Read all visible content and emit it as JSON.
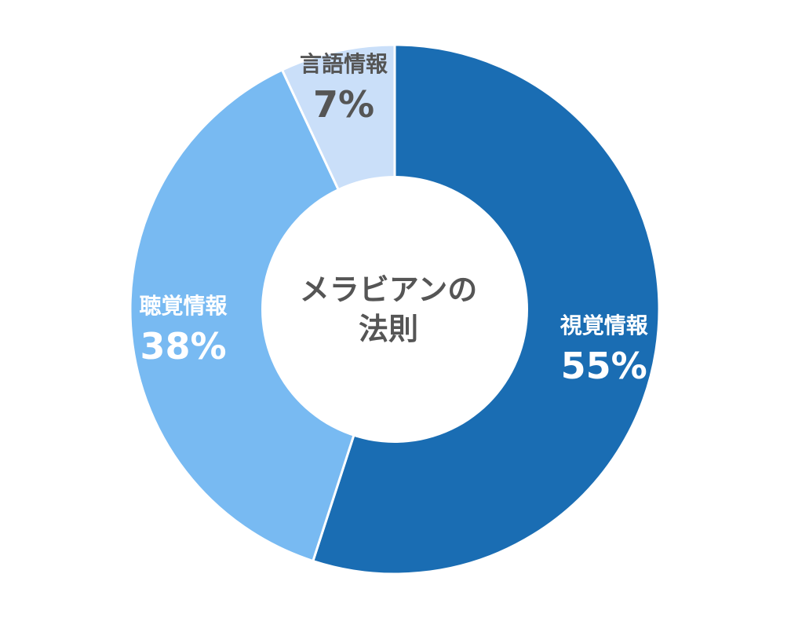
{
  "chart_data": {
    "type": "pie",
    "title_lines": [
      "メラビアンの",
      "法則"
    ],
    "categories": [
      "視覚情報",
      "聴覚情報",
      "言語情報"
    ],
    "values": [
      55,
      38,
      7
    ],
    "value_labels": [
      "55%",
      "38%",
      "7%"
    ],
    "colors": [
      "#1a6db3",
      "#78baf2",
      "#cadff9"
    ],
    "label_colors": [
      "#ffffff",
      "#ffffff",
      "#555555"
    ],
    "start": "12-o'clock",
    "direction": "clockwise",
    "donut": true,
    "legend": "none"
  }
}
